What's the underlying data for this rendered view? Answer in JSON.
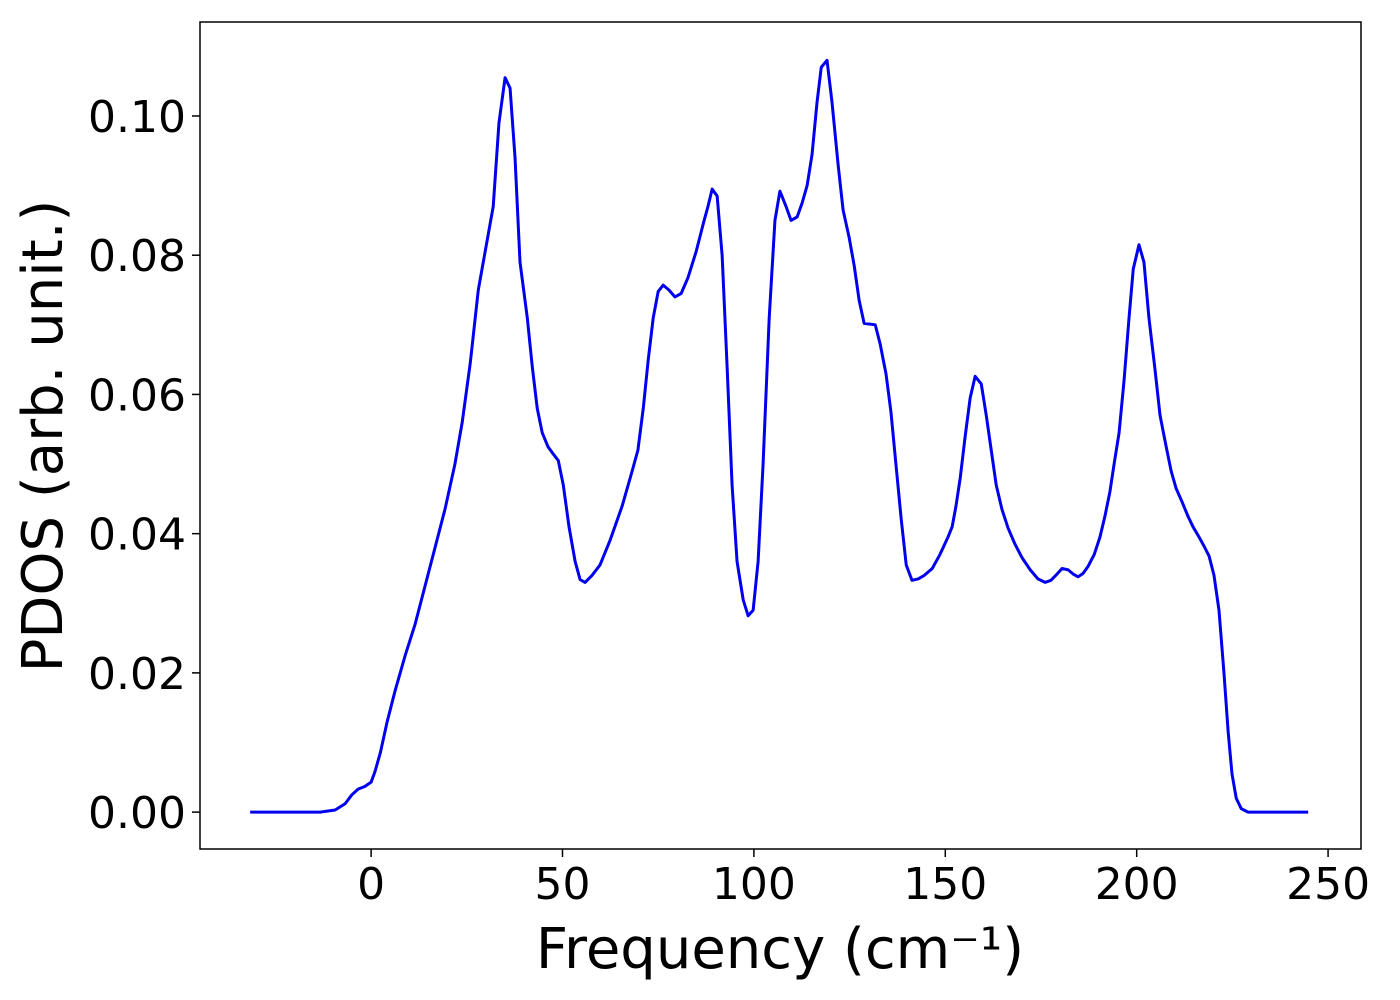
{
  "chart_data": {
    "type": "line",
    "xlabel": "Frequency (cm⁻¹)",
    "ylabel": "PDOS (arb. unit.)",
    "xlim": [
      -44.7,
      258.6
    ],
    "ylim": [
      -0.0053,
      0.1135
    ],
    "xticks": [
      0,
      50,
      100,
      150,
      200,
      250
    ],
    "yticks": [
      {
        "value": 0,
        "label": "0.00"
      },
      0.02,
      0.04,
      0.06,
      0.08,
      {
        "value": 0.1,
        "label": "0.10"
      }
    ],
    "x": [
      -31.6,
      -13.3,
      -9.4,
      -6.8,
      -5.0,
      -3.4,
      -1.6,
      0,
      1.0,
      2.4,
      4.2,
      6.3,
      8.9,
      11.5,
      14.1,
      16.7,
      19.3,
      21.9,
      23.8,
      25.9,
      28.0,
      31.9,
      33.4,
      35.0,
      36.3,
      37.6,
      38.9,
      40.8,
      42.1,
      43.4,
      44.7,
      46.2,
      47.5,
      48.9,
      50.2,
      51.7,
      53.3,
      54.6,
      55.9,
      57.7,
      59.8,
      62.4,
      65.6,
      68.2,
      69.7,
      71.1,
      72.4,
      73.7,
      75.0,
      76.3,
      77.8,
      79.4,
      81.0,
      82.8,
      84.9,
      87.0,
      88.0,
      89.1,
      90.4,
      91.7,
      93.0,
      94.3,
      95.6,
      97.2,
      98.5,
      99.8,
      101.1,
      102.4,
      104.0,
      105.5,
      106.8,
      108.4,
      109.7,
      111.3,
      112.6,
      113.9,
      115.2,
      116.5,
      117.6,
      119.1,
      120.4,
      122.0,
      123.3,
      124.9,
      126.2,
      127.5,
      128.8,
      131.7,
      133.0,
      134.5,
      135.8,
      137.1,
      138.5,
      139.8,
      141.3,
      142.9,
      144.5,
      146.6,
      148.6,
      150.7,
      151.8,
      152.8,
      153.9,
      155.2,
      156.5,
      157.8,
      159.4,
      160.7,
      162.0,
      163.3,
      164.8,
      166.4,
      168.2,
      170.1,
      172.2,
      174.2,
      176.1,
      177.6,
      179.2,
      180.5,
      182.1,
      183.4,
      184.7,
      186.0,
      187.3,
      188.9,
      190.4,
      191.7,
      193.0,
      194.1,
      195.4,
      196.7,
      198.0,
      199.1,
      200.6,
      201.9,
      203.2,
      204.8,
      206.1,
      207.7,
      209.0,
      210.3,
      211.9,
      213.4,
      214.7,
      216.3,
      217.6,
      218.9,
      220.2,
      221.5,
      222.8,
      223.9,
      224.9,
      226.0,
      227.3,
      229.1,
      244.8
    ],
    "series": [
      {
        "name": "PDOS",
        "color": "#0000ee",
        "values": [
          0,
          0,
          0.0003,
          0.0012,
          0.0025,
          0.0033,
          0.0037,
          0.0043,
          0.0058,
          0.0085,
          0.013,
          0.0175,
          0.0225,
          0.027,
          0.0325,
          0.038,
          0.0435,
          0.05,
          0.056,
          0.0645,
          0.075,
          0.087,
          0.099,
          0.1055,
          0.104,
          0.094,
          0.079,
          0.071,
          0.064,
          0.058,
          0.0545,
          0.0525,
          0.0515,
          0.0505,
          0.047,
          0.041,
          0.036,
          0.0334,
          0.033,
          0.034,
          0.0355,
          0.039,
          0.044,
          0.049,
          0.052,
          0.058,
          0.065,
          0.071,
          0.0748,
          0.0757,
          0.075,
          0.074,
          0.0745,
          0.0768,
          0.0805,
          0.085,
          0.087,
          0.0895,
          0.0885,
          0.08,
          0.064,
          0.047,
          0.036,
          0.0305,
          0.0282,
          0.029,
          0.036,
          0.05,
          0.071,
          0.085,
          0.0892,
          0.087,
          0.085,
          0.0855,
          0.0875,
          0.09,
          0.0945,
          0.102,
          0.107,
          0.108,
          0.102,
          0.093,
          0.0865,
          0.0825,
          0.0785,
          0.0735,
          0.0702,
          0.07,
          0.0672,
          0.063,
          0.0575,
          0.05,
          0.042,
          0.0355,
          0.0333,
          0.0335,
          0.034,
          0.035,
          0.037,
          0.0395,
          0.041,
          0.044,
          0.048,
          0.054,
          0.0595,
          0.0626,
          0.0615,
          0.057,
          0.052,
          0.047,
          0.0435,
          0.0408,
          0.0385,
          0.0365,
          0.0348,
          0.0335,
          0.033,
          0.0333,
          0.0342,
          0.035,
          0.0348,
          0.0342,
          0.0338,
          0.0343,
          0.0353,
          0.037,
          0.0395,
          0.0425,
          0.046,
          0.05,
          0.0545,
          0.062,
          0.071,
          0.078,
          0.0815,
          0.079,
          0.071,
          0.0635,
          0.057,
          0.0525,
          0.049,
          0.0465,
          0.0445,
          0.0425,
          0.041,
          0.0395,
          0.0382,
          0.0368,
          0.034,
          0.029,
          0.02,
          0.0115,
          0.0055,
          0.002,
          0.0005,
          0,
          0
        ]
      }
    ]
  }
}
